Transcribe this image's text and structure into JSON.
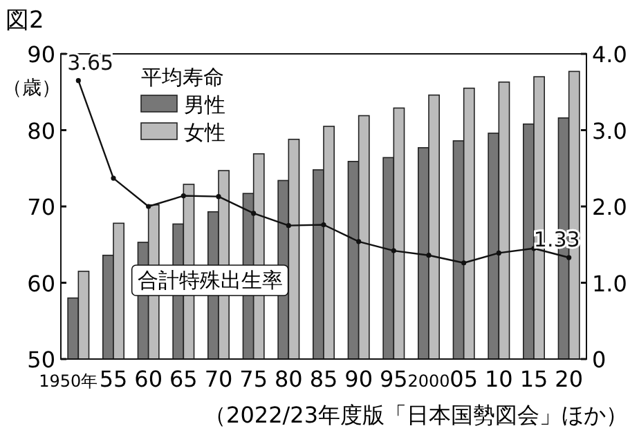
{
  "chart_data": {
    "type": "bar",
    "title": "図2",
    "ylabel": "（歳）",
    "legend_title": "平均寿命",
    "legend": "top left",
    "grid": false,
    "categories": [
      "1950年",
      "55",
      "60",
      "65",
      "70",
      "75",
      "80",
      "85",
      "90",
      "95",
      "2000",
      "05",
      "10",
      "15",
      "20"
    ],
    "ylim": [
      50,
      90
    ],
    "yticks": [
      50,
      60,
      70,
      80,
      90
    ],
    "y2lim": [
      0,
      4
    ],
    "y2ticks": [
      0,
      {
        "value": 1,
        "label": "1.0"
      },
      {
        "value": 2,
        "label": "2.0"
      },
      {
        "value": 3,
        "label": "3.0"
      },
      {
        "value": 4,
        "label": "4.0"
      }
    ],
    "series": [
      {
        "name": "男性",
        "color": "#777777",
        "values": [
          58.0,
          63.6,
          65.3,
          67.7,
          69.3,
          71.7,
          73.4,
          74.8,
          75.9,
          76.4,
          77.7,
          78.6,
          79.6,
          80.8,
          81.6
        ]
      },
      {
        "name": "女性",
        "color": "#bbbbbb",
        "values": [
          61.5,
          67.8,
          70.2,
          72.9,
          74.7,
          76.9,
          78.8,
          80.5,
          81.9,
          82.9,
          84.6,
          85.5,
          86.3,
          87.0,
          87.7
        ]
      },
      {
        "name": "合計特殊出生率",
        "type": "line",
        "axis": "y2",
        "color": "#111111",
        "marker": "circle",
        "values": [
          3.65,
          2.37,
          2.0,
          2.14,
          2.13,
          1.91,
          1.75,
          1.76,
          1.54,
          1.42,
          1.36,
          1.26,
          1.39,
          1.45,
          1.33
        ],
        "value_labels": [
          "3.65",
          null,
          null,
          null,
          null,
          null,
          null,
          null,
          null,
          null,
          null,
          null,
          null,
          null,
          "1.33"
        ]
      }
    ],
    "annotations": [
      "（2022/23年度版「日本国勢図会」ほか）"
    ]
  }
}
